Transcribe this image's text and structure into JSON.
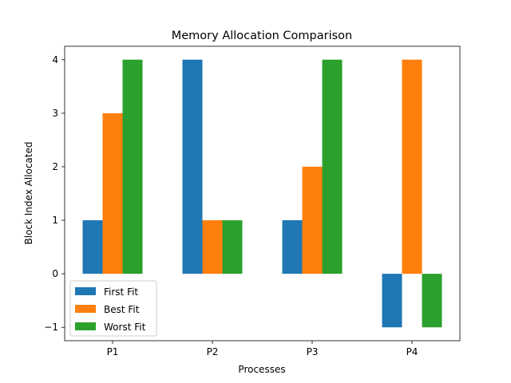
{
  "chart_data": {
    "type": "bar",
    "title": "Memory Allocation Comparison",
    "xlabel": "Processes",
    "ylabel": "Block Index Allocated",
    "categories": [
      "P1",
      "P2",
      "P3",
      "P4"
    ],
    "series": [
      {
        "name": "First Fit",
        "values": [
          1,
          4,
          1,
          -1
        ],
        "color": "#1f77b4"
      },
      {
        "name": "Best Fit",
        "values": [
          3,
          1,
          2,
          4
        ],
        "color": "#ff7f0e"
      },
      {
        "name": "Worst Fit",
        "values": [
          4,
          1,
          4,
          -1
        ],
        "color": "#2ca02c"
      }
    ],
    "yticks": [
      -1,
      0,
      1,
      2,
      3,
      4
    ],
    "ytick_labels": [
      "−1",
      "0",
      "1",
      "2",
      "3",
      "4"
    ],
    "ylim": [
      -1.25,
      4.25
    ],
    "legend": "lower-left",
    "grid": false
  }
}
